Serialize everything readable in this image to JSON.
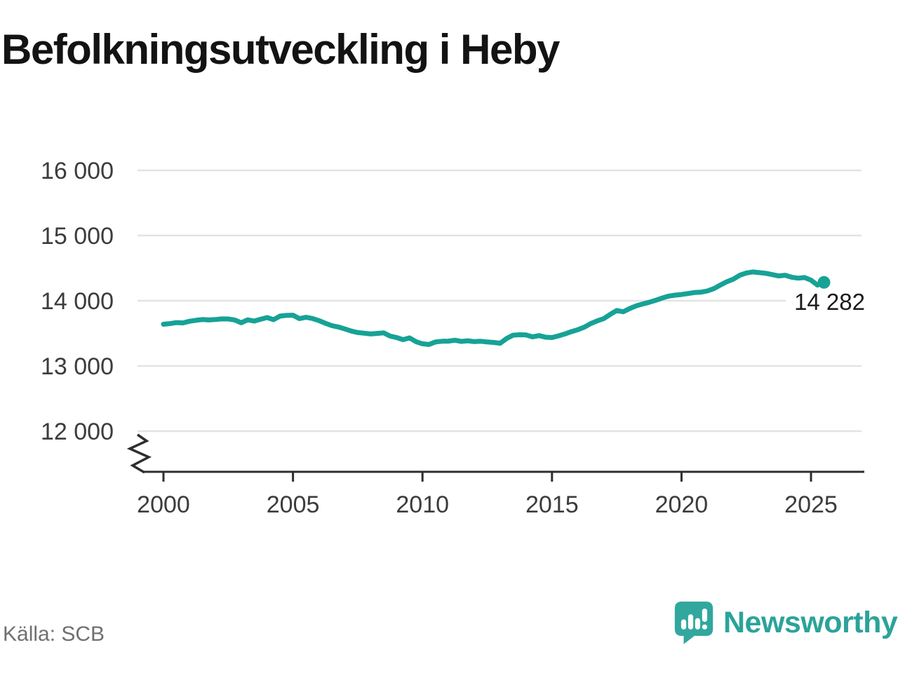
{
  "title": "Befolkningsutveckling i Heby",
  "source": "Källa: SCB",
  "brand": {
    "name": "Newsworthy",
    "icon": "bar-chart-exclamation-bubble-icon",
    "badge_color": "#31a79d",
    "wordmark_color": "#2ba39a"
  },
  "chart_data": {
    "type": "line",
    "title": "Befolkningsutveckling i Heby",
    "series_name": "Folkmängd i Heby",
    "xlabel": "",
    "ylabel": "",
    "grid": true,
    "axis_break": true,
    "ylim": [
      12000,
      16000
    ],
    "xlim": [
      2000,
      2026
    ],
    "line_color": "#17a296",
    "grid_color": "#e3e3e3",
    "axis_color": "#2e2e2e",
    "tick_label_color": "#3c3c3c",
    "x_ticks": [
      2000,
      2005,
      2010,
      2015,
      2020,
      2025
    ],
    "x_tick_labels": [
      "2000",
      "2005",
      "2010",
      "2015",
      "2020",
      "2025"
    ],
    "y_ticks": [
      16000,
      15000,
      14000,
      13000,
      12000
    ],
    "y_tick_labels": [
      "16 000",
      "15 000",
      "14 000",
      "13 000",
      "12 000"
    ],
    "last_point": {
      "x": 2025.5,
      "value": 14282,
      "label": "14 282"
    },
    "x": [
      2000,
      2000.25,
      2000.5,
      2000.75,
      2001,
      2001.25,
      2001.5,
      2001.75,
      2002,
      2002.25,
      2002.5,
      2002.75,
      2003,
      2003.25,
      2003.5,
      2003.75,
      2004,
      2004.25,
      2004.5,
      2004.75,
      2005,
      2005.25,
      2005.5,
      2005.75,
      2006,
      2006.25,
      2006.5,
      2006.75,
      2007,
      2007.25,
      2007.5,
      2007.75,
      2008,
      2008.25,
      2008.5,
      2008.75,
      2009,
      2009.25,
      2009.5,
      2009.75,
      2010,
      2010.25,
      2010.5,
      2010.75,
      2011,
      2011.25,
      2011.5,
      2011.75,
      2012,
      2012.25,
      2012.5,
      2012.75,
      2013,
      2013.25,
      2013.5,
      2013.75,
      2014,
      2014.25,
      2014.5,
      2014.75,
      2015,
      2015.25,
      2015.5,
      2015.75,
      2016,
      2016.25,
      2016.5,
      2016.75,
      2017,
      2017.25,
      2017.5,
      2017.75,
      2018,
      2018.25,
      2018.5,
      2018.75,
      2019,
      2019.25,
      2019.5,
      2019.75,
      2020,
      2020.25,
      2020.5,
      2020.75,
      2021,
      2021.25,
      2021.5,
      2021.75,
      2022,
      2022.25,
      2022.5,
      2022.75,
      2023,
      2023.25,
      2023.5,
      2023.75,
      2024,
      2024.25,
      2024.5,
      2024.75,
      2025,
      2025.25,
      2025.5
    ],
    "values": [
      13640,
      13650,
      13665,
      13660,
      13685,
      13700,
      13712,
      13705,
      13712,
      13722,
      13720,
      13705,
      13662,
      13708,
      13688,
      13716,
      13742,
      13710,
      13764,
      13775,
      13778,
      13726,
      13746,
      13728,
      13696,
      13655,
      13618,
      13598,
      13568,
      13536,
      13512,
      13502,
      13490,
      13499,
      13508,
      13458,
      13436,
      13403,
      13430,
      13372,
      13340,
      13329,
      13368,
      13378,
      13381,
      13395,
      13376,
      13386,
      13373,
      13378,
      13368,
      13360,
      13348,
      13421,
      13472,
      13478,
      13475,
      13446,
      13466,
      13441,
      13436,
      13461,
      13491,
      13526,
      13556,
      13596,
      13651,
      13691,
      13726,
      13791,
      13851,
      13831,
      13881,
      13921,
      13951,
      13976,
      14006,
      14041,
      14071,
      14086,
      14096,
      14111,
      14126,
      14131,
      14151,
      14186,
      14241,
      14291,
      14331,
      14391,
      14426,
      14442,
      14431,
      14421,
      14401,
      14381,
      14391,
      14361,
      14346,
      14356,
      14316,
      14241,
      14282
    ]
  }
}
